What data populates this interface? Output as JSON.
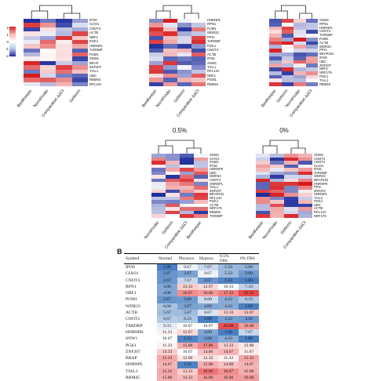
{
  "legend": {
    "ticks": [
      "2",
      "1",
      "0",
      "-1",
      "-2"
    ]
  },
  "heatmaps": [
    {
      "id": "p1",
      "title": "",
      "methods": [
        "BestKeeper",
        "NormFinder",
        "Comparative ΔΔCt",
        "GeNorm"
      ],
      "genes": [
        "IPO8",
        "CIAO1",
        "CNOT4",
        "ACTB",
        "NRF1",
        "PGK1",
        "HNRNPL",
        "TARDBP",
        "PUM1",
        "SNW1",
        "BRAP",
        "ZNF207",
        "TIAL1",
        "UBC",
        "RBM45",
        "RPL13A"
      ]
    },
    {
      "id": "p2",
      "title": "",
      "methods": [
        "BestKeeper",
        "NormFinder",
        "GeNorm",
        "Comparative ΔΔCt"
      ],
      "genes": [
        "HNRNPL",
        "RPN1",
        "PUM1",
        "WDR33",
        "PPIA",
        "TARDBP",
        "PGK1",
        "CNOT4",
        "ACTB",
        "IPO8",
        "SNW1",
        "TIAL1",
        "RPL13A",
        "NRF1",
        "PGM1",
        "RBM45"
      ]
    },
    {
      "id": "p3",
      "title": "",
      "methods": [
        "BestKeeper",
        "GeNorm",
        "NormFinder",
        "Comparative ΔΔCt"
      ],
      "genes": [
        "SNW1",
        "RPN1",
        "HNRNPL",
        "CNOT4",
        "TARDBP",
        "PUM1",
        "ACTB",
        "WDR33",
        "PPIA",
        "BRAP231",
        "IPO8",
        "UBC",
        "ZNF207",
        "NRF1",
        "NRF179",
        "PGK1",
        "TIAL1",
        "RBM45"
      ]
    },
    {
      "id": "p4",
      "title": "0.5%",
      "methods": [
        "NormFinder",
        "GeNorm",
        "Comparative ΔΔCt",
        "BestKeeper"
      ],
      "genes": [
        "SNW1",
        "CIAO1",
        "PUM1",
        "IPO8",
        "HNRNPK",
        "UBC",
        "WDR33",
        "CNOT4",
        "HNRNPL",
        "TIAL1",
        "ZNF207",
        "BRAP231",
        "RPL13A",
        "PGK1",
        "ACTB",
        "NRF179",
        "RBM45",
        "TARDBP"
      ]
    },
    {
      "id": "p5",
      "title": "0%",
      "methods": [
        "BestKeeper",
        "NormFinder",
        "GeNorm",
        "Comparative ΔΔCt"
      ],
      "genes": [
        "SNW1",
        "CNOT2",
        "CNOT4",
        "CIAO1",
        "IPO8",
        "TARDBP",
        "WDR33",
        "BRAP231",
        "HNRNPK",
        "PPIA",
        "ZNF207",
        "HNRNPL",
        "TIAL1",
        "PGK1",
        "UBC",
        "ACTB",
        "RPL13A",
        "NRF179"
      ]
    }
  ],
  "section_b": {
    "label": "B",
    "headers": [
      "Symbol",
      "Normal",
      "Physoxa",
      "Hypoxa",
      "0.5% FBS",
      "0% FBS"
    ],
    "rows": [
      [
        "IPO8",
        "1.00",
        "9.67",
        "7.67",
        "5.33",
        "5.00"
      ],
      [
        "CIAO1",
        "2.67",
        "3.67",
        "9.67",
        "5.33",
        "3.00"
      ],
      [
        "CNOT4",
        "2.67",
        "7.67",
        "2.67",
        "1.33",
        "1.00"
      ],
      [
        "RPN1",
        "4.00",
        "13.33",
        "12.67",
        "10.33",
        "7.33"
      ],
      [
        "NRF1",
        "4.00",
        "16.67",
        "16.00",
        "17.33",
        "20.33"
      ],
      [
        "PUM1",
        "2.67",
        "3.00",
        "8.00",
        "4.33",
        "6.33"
      ],
      [
        "WDR33",
        "6.00",
        "3.67",
        "4.00",
        "4.33",
        "1.00"
      ],
      [
        "ACTB",
        "5.67",
        "5.67",
        "8.67",
        "13.33",
        "13.67"
      ],
      [
        "CNOT2",
        "6.67",
        "6.33",
        "1.00",
        "3.33",
        "3.00"
      ],
      [
        "TARDBP",
        "9.33",
        "10.67",
        "10.67",
        "20.00",
        "16.00"
      ],
      [
        "HNRNPK",
        "11.33",
        "12.67",
        "4.00",
        "1.00",
        "7.67"
      ],
      [
        "SNW1",
        "10.67",
        "1.33",
        "3.00",
        "4.33",
        "1.00"
      ],
      [
        "PGK1",
        "11.33",
        "15.00",
        "17.00",
        "13.33",
        "12.00"
      ],
      [
        "ZNF207",
        "13.33",
        "10.67",
        "14.00",
        "14.67",
        "11.67"
      ],
      [
        "BRAP",
        "15.33",
        "12.00",
        "12.33",
        "11.33",
        "15.33"
      ],
      [
        "HNRNPL",
        "14.67",
        "1.33",
        "15.00",
        "14.00",
        "14.67"
      ],
      [
        "TIAL1",
        "15.33",
        "13.33",
        "18.00",
        "16.67",
        "15.00"
      ],
      [
        "RBM45",
        "15.00",
        "14.33",
        "16.00",
        "16.00",
        "16.00"
      ]
    ]
  },
  "colors": {
    "high": "#d7191c",
    "low": "#1f2e9c",
    "mid": "#ffffff"
  }
}
